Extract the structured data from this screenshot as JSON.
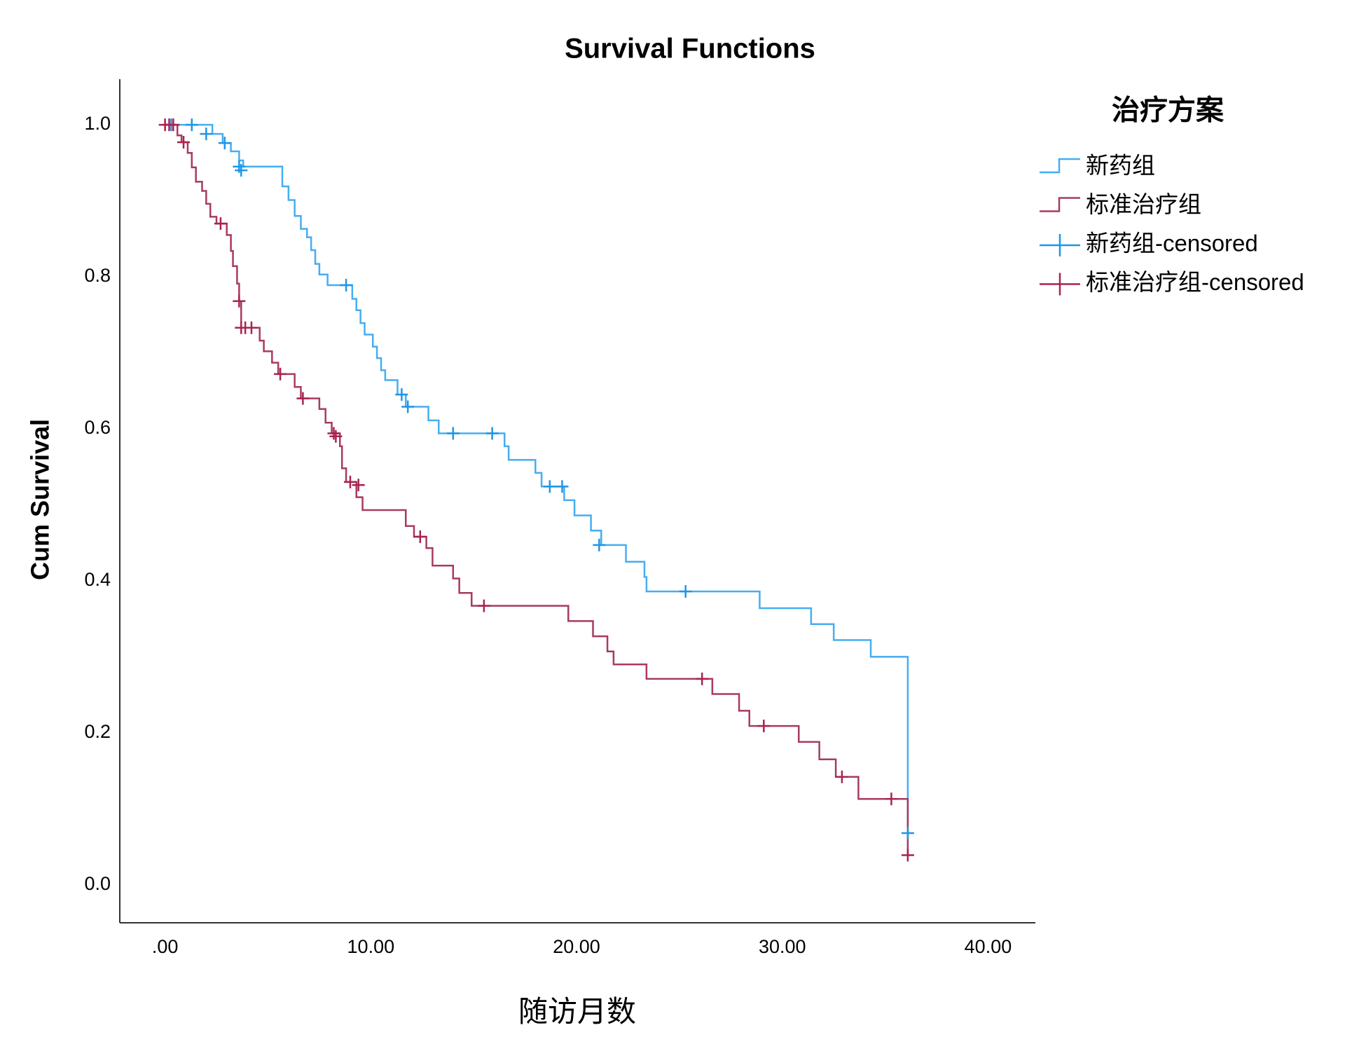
{
  "chart_data": {
    "type": "step",
    "title": "Survival Functions",
    "x_label": "随访月数",
    "y_label": "Cum Survival",
    "legend_title": "治疗方案",
    "legend_position": "right",
    "xlim": [
      -2.2,
      42.3
    ],
    "ylim": [
      -0.05,
      1.06
    ],
    "xticks": [
      {
        "value": 0,
        "label": ".00"
      },
      {
        "value": 10,
        "label": "10.00"
      },
      {
        "value": 20,
        "label": "20.00"
      },
      {
        "value": 30,
        "label": "30.00"
      },
      {
        "value": 40,
        "label": "40.00"
      }
    ],
    "yticks": [
      {
        "value": 0,
        "label": "0.0"
      },
      0.2,
      0.4,
      0.6,
      0.8,
      {
        "value": 1,
        "label": "1.0"
      }
    ],
    "series": [
      {
        "name": "新药组",
        "color": "#45aef0",
        "mode": "step",
        "x": [
          0,
          2.3,
          2.8,
          3.2,
          3.6,
          3.8,
          5.7,
          6.0,
          6.3,
          6.6,
          6.9,
          7.1,
          7.3,
          7.5,
          7.9,
          9.1,
          9.3,
          9.5,
          9.7,
          10.1,
          10.3,
          10.5,
          10.7,
          11.3,
          11.7,
          12.8,
          13.3,
          16.5,
          16.7,
          18.0,
          18.3,
          19.4,
          19.9,
          20.7,
          21.2,
          22.4,
          23.3,
          23.4,
          28.9,
          31.4,
          32.5,
          34.3,
          36.1
        ],
        "values": [
          1.0,
          0.988,
          0.976,
          0.965,
          0.953,
          0.945,
          0.919,
          0.901,
          0.88,
          0.863,
          0.852,
          0.835,
          0.817,
          0.803,
          0.789,
          0.771,
          0.756,
          0.739,
          0.724,
          0.708,
          0.693,
          0.677,
          0.664,
          0.645,
          0.629,
          0.611,
          0.594,
          0.577,
          0.559,
          0.542,
          0.524,
          0.506,
          0.486,
          0.466,
          0.447,
          0.425,
          0.405,
          0.386,
          0.364,
          0.343,
          0.322,
          0.3,
          0.068
        ]
      },
      {
        "name": "标准治疗组",
        "color": "#a83a60",
        "mode": "step",
        "x": [
          0,
          0.6,
          0.8,
          1.1,
          1.3,
          1.5,
          1.8,
          2.0,
          2.2,
          2.5,
          3.0,
          3.2,
          3.3,
          3.5,
          3.6,
          3.7,
          4.6,
          4.8,
          5.2,
          5.5,
          6.3,
          6.6,
          7.5,
          7.8,
          8.1,
          8.5,
          8.6,
          8.8,
          9.3,
          9.6,
          11.7,
          12.1,
          12.7,
          13.0,
          14.0,
          14.3,
          14.9,
          19.6,
          20.8,
          21.5,
          21.8,
          23.4,
          26.6,
          27.9,
          28.4,
          30.8,
          31.8,
          32.6,
          33.7,
          36.1
        ],
        "values": [
          1.0,
          0.986,
          0.977,
          0.963,
          0.944,
          0.925,
          0.913,
          0.896,
          0.879,
          0.87,
          0.855,
          0.834,
          0.814,
          0.791,
          0.768,
          0.733,
          0.716,
          0.702,
          0.687,
          0.672,
          0.655,
          0.64,
          0.626,
          0.608,
          0.594,
          0.577,
          0.548,
          0.53,
          0.51,
          0.493,
          0.472,
          0.458,
          0.443,
          0.42,
          0.403,
          0.384,
          0.367,
          0.347,
          0.327,
          0.307,
          0.29,
          0.271,
          0.251,
          0.229,
          0.209,
          0.188,
          0.165,
          0.142,
          0.113,
          0.039
        ]
      },
      {
        "name": "新药组-censored",
        "color": "#1e96e8",
        "mode": "markers",
        "x": [
          0.3,
          1.3,
          2.0,
          2.9,
          3.6,
          3.7,
          8.8,
          11.5,
          11.8,
          14.0,
          15.9,
          18.7,
          19.3,
          21.1,
          25.3,
          36.1
        ],
        "values": [
          1.0,
          1.0,
          0.988,
          0.976,
          0.945,
          0.94,
          0.789,
          0.645,
          0.629,
          0.594,
          0.594,
          0.524,
          0.524,
          0.447,
          0.386,
          0.068
        ]
      },
      {
        "name": "标准治疗组-censored",
        "color": "#a8234e",
        "mode": "markers",
        "x": [
          0,
          0.2,
          0.4,
          0.9,
          2.7,
          3.6,
          3.7,
          3.9,
          4.2,
          5.6,
          6.7,
          8.2,
          8.3,
          9.0,
          9.4,
          12.4,
          15.5,
          26.1,
          29.1,
          32.9,
          35.3,
          36.1
        ],
        "values": [
          1.0,
          1.0,
          1.0,
          0.977,
          0.87,
          0.768,
          0.733,
          0.733,
          0.733,
          0.672,
          0.64,
          0.594,
          0.59,
          0.53,
          0.526,
          0.458,
          0.367,
          0.271,
          0.209,
          0.142,
          0.113,
          0.039
        ]
      }
    ]
  }
}
